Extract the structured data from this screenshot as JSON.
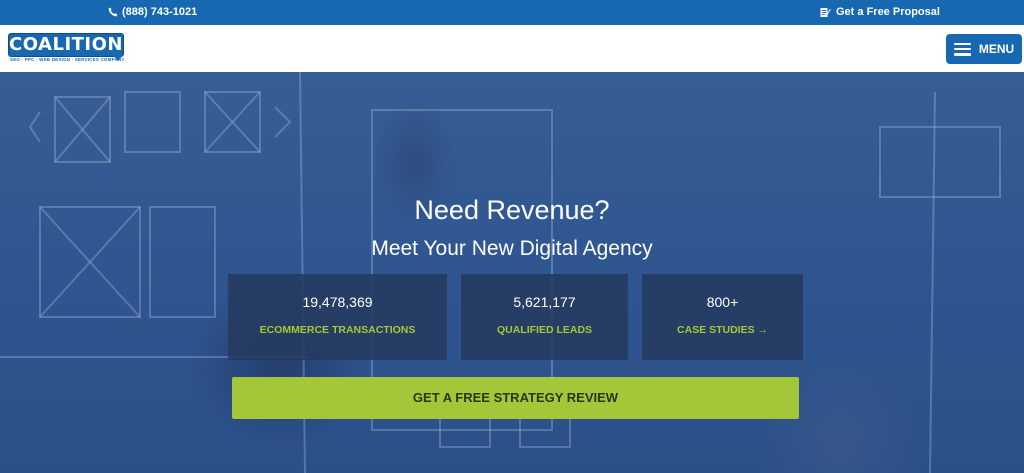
{
  "topbar": {
    "phone": "(888) 743-1021",
    "proposal": "Get a Free Proposal"
  },
  "header": {
    "logo_text": "COALITION",
    "logo_tagline": "SEO · PPC · WEB DESIGN · SERVICES COMPANY",
    "menu_label": "MENU"
  },
  "hero": {
    "title": "Need Revenue?",
    "subtitle": "Meet Your New Digital Agency",
    "stats": [
      {
        "value": "19,478,369",
        "label": "ECOMMERCE TRANSACTIONS"
      },
      {
        "value": "5,621,177",
        "label": "QUALIFIED LEADS"
      },
      {
        "value": "800+",
        "label": "CASE STUDIES →"
      }
    ],
    "cta_label": "GET A FREE STRATEGY REVIEW"
  },
  "colors": {
    "brand_blue": "#1768b0",
    "accent_green": "#a4c639",
    "overlay_blue": "#2f5590"
  },
  "icons": [
    "phone-icon",
    "proposal-icon",
    "menu-icon"
  ]
}
